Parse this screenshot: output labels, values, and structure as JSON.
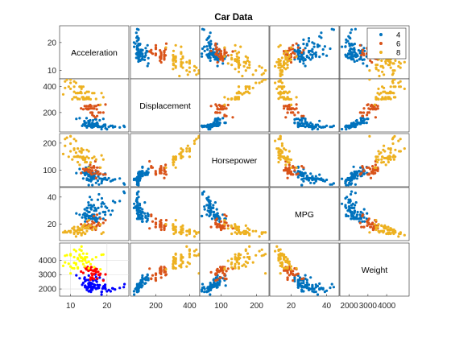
{
  "chart_data": {
    "type": "scatter",
    "title": "Car Data",
    "variables": [
      "Acceleration",
      "Displacement",
      "Horsepower",
      "MPG",
      "Weight"
    ],
    "ranges": {
      "Acceleration": [
        7,
        26
      ],
      "Displacement": [
        50,
        460
      ],
      "Horsepower": [
        40,
        235
      ],
      "MPG": [
        8,
        47
      ],
      "Weight": [
        1500,
        5200
      ]
    },
    "ticks": {
      "Acceleration": [
        10,
        20
      ],
      "Displacement": [
        200,
        400
      ],
      "Horsepower": [
        100,
        200
      ],
      "MPG": [
        20,
        40
      ],
      "Weight": [
        2000,
        3000,
        4000
      ]
    },
    "legend": {
      "position": "top-right",
      "entries": [
        {
          "label": "4",
          "color": "#0072BD"
        },
        {
          "label": "6",
          "color": "#D95319"
        },
        {
          "label": "8",
          "color": "#EDB120"
        }
      ]
    },
    "highlight_panel": {
      "row": "Weight",
      "col": "Acceleration",
      "colors": [
        "#0000FF",
        "#FF0000",
        "#FFFF00"
      ],
      "grid": true
    },
    "series": [
      {
        "name": "4",
        "color": "#0072BD",
        "points": [
          [
            19.5,
            97,
            88,
            27,
            2130
          ],
          [
            14.5,
            97,
            88,
            27,
            2130
          ],
          [
            15.5,
            97,
            88,
            26,
            2130
          ],
          [
            15,
            97,
            46,
            26,
            1835
          ],
          [
            16,
            97,
            88,
            27,
            2145
          ],
          [
            14,
            98,
            83,
            26,
            2219
          ],
          [
            15,
            104,
            95,
            25,
            2375
          ],
          [
            15,
            121,
            113,
            24,
            2234
          ],
          [
            15.5,
            107,
            90,
            24,
            2430
          ],
          [
            16,
            113,
            95,
            24,
            2372
          ],
          [
            14,
            101,
            83,
            25,
            2228
          ],
          [
            15,
            121,
            112,
            24,
            2933
          ],
          [
            14.5,
            97,
            88,
            27,
            2130
          ],
          [
            17,
            98,
            70,
            30,
            2047
          ],
          [
            16.5,
            97,
            88,
            24,
            2288
          ],
          [
            18.5,
            91,
            53,
            33,
            1795
          ],
          [
            21,
            97,
            60,
            27,
            1834
          ],
          [
            17,
            97,
            54,
            31,
            2003
          ],
          [
            19,
            97,
            67,
            29,
            2065
          ],
          [
            16.5,
            97,
            88,
            24,
            2100
          ],
          [
            18,
            90,
            70,
            28,
            2264
          ],
          [
            14,
            116,
            90,
            28,
            2123
          ],
          [
            14.5,
            85,
            65,
            32,
            2020
          ],
          [
            19,
            98,
            68,
            29,
            2155
          ],
          [
            16,
            90,
            75,
            24,
            2108
          ],
          [
            15.5,
            97,
            67,
            26,
            2145
          ],
          [
            20,
            71,
            65,
            32,
            1836
          ],
          [
            16,
            85,
            70,
            33,
            1990
          ],
          [
            17.5,
            89,
            62,
            38,
            2050
          ],
          [
            16.5,
            111,
            80,
            27,
            2155
          ],
          [
            21.5,
            98,
            63,
            30,
            2051
          ],
          [
            18.5,
            72,
            69,
            35,
            1613
          ],
          [
            16,
            97,
            46,
            26,
            1950
          ],
          [
            14.5,
            91,
            70,
            30,
            1937
          ],
          [
            19.5,
            107,
            72,
            29,
            2290
          ],
          [
            23.5,
            85,
            70,
            37,
            2070
          ],
          [
            22.2,
            91,
            67,
            36,
            1965
          ],
          [
            24.8,
            90,
            48,
            43,
            2335
          ],
          [
            21.7,
            86,
            65,
            37,
            2019
          ],
          [
            15.3,
            98,
            65,
            40,
            1875
          ],
          [
            17.6,
            97,
            78,
            32,
            2188
          ],
          [
            18.8,
            91,
            68,
            36,
            2025
          ],
          [
            13.9,
            120,
            88,
            31,
            2800
          ],
          [
            16.4,
            91,
            69,
            34,
            2130
          ],
          [
            20.5,
            89,
            71,
            30,
            1925
          ],
          [
            17.2,
            120,
            97,
            24,
            2506
          ],
          [
            15.5,
            97,
            78,
            34,
            2300
          ],
          [
            19.6,
            79,
            67,
            33,
            2000
          ],
          [
            24.6,
            97,
            52,
            44,
            2130
          ],
          [
            11.6,
            151,
            90,
            28,
            2950
          ],
          [
            16.9,
            112,
            88,
            25,
            2605
          ],
          [
            14.9,
            135,
            84,
            36,
            2370
          ],
          [
            17.3,
            122,
            96,
            22,
            2695
          ],
          [
            15,
            105,
            63,
            34,
            2125
          ],
          [
            16.7,
            108,
            75,
            32,
            2265
          ],
          [
            15.8,
            86,
            65,
            38,
            1975
          ],
          [
            18.6,
            89,
            60,
            39,
            1800
          ],
          [
            15.4,
            140,
            90,
            26,
            2408
          ],
          [
            16.2,
            140,
            83,
            25,
            2639
          ],
          [
            19,
            151,
            84,
            24,
            2635
          ],
          [
            17,
            146,
            97,
            22,
            2815
          ],
          [
            14.4,
            156,
            92,
            26,
            2620
          ],
          [
            13.8,
            134,
            90,
            28,
            2711
          ],
          [
            16,
            121,
            80,
            26,
            2670
          ],
          [
            15.5,
            98,
            76,
            32,
            2144
          ],
          [
            14,
            119,
            97,
            22,
            2545
          ],
          [
            15.2,
            122,
            80,
            29,
            2451
          ],
          [
            16.5,
            107,
            72,
            30,
            2290
          ],
          [
            17.4,
            113,
            95,
            24,
            2278
          ],
          [
            12.5,
            156,
            105,
            27,
            2745
          ],
          [
            16.8,
            151,
            88,
            23,
            3000
          ],
          [
            18,
            140,
            86,
            25,
            2790
          ],
          [
            14.7,
            98,
            68,
            32,
            2045
          ],
          [
            13.5,
            108,
            70,
            27,
            2420
          ],
          [
            15.9,
            98,
            80,
            26,
            2164
          ],
          [
            14.2,
            121,
            110,
            24,
            2600
          ],
          [
            13.2,
            97,
            92,
            25,
            2288
          ],
          [
            15.7,
            89,
            71,
            31,
            1990
          ],
          [
            14.9,
            120,
            79,
            29,
            2625
          ],
          [
            16.2,
            112,
            85,
            27,
            2575
          ],
          [
            19.2,
            105,
            70,
            35,
            2200
          ],
          [
            17.8,
            90,
            48,
            42,
            2085
          ],
          [
            15.6,
            91,
            60,
            34,
            1800
          ]
        ]
      },
      {
        "name": "6",
        "color": "#D95319",
        "points": [
          [
            16,
            199,
            97,
            18,
            2774
          ],
          [
            15.5,
            199,
            90,
            18,
            2648
          ],
          [
            19,
            200,
            85,
            21,
            2587
          ],
          [
            15.5,
            232,
            100,
            18,
            2789
          ],
          [
            13.5,
            225,
            105,
            18,
            3121
          ],
          [
            15.5,
            250,
            100,
            17,
            3329
          ],
          [
            16.5,
            250,
            88,
            18,
            3302
          ],
          [
            15,
            250,
            105,
            17,
            3282
          ],
          [
            16,
            232,
            100,
            16,
            3288
          ],
          [
            18,
            258,
            110,
            19,
            2962
          ],
          [
            17,
            250,
            72,
            18,
            3158
          ],
          [
            16.5,
            231,
            110,
            21,
            3039
          ],
          [
            14.9,
            225,
            95,
            20,
            3264
          ],
          [
            14.2,
            231,
            105,
            19,
            3425
          ],
          [
            16,
            181,
            110,
            22,
            2945
          ],
          [
            19.6,
            262,
            85,
            23,
            3015
          ],
          [
            16.4,
            231,
            115,
            21,
            3245
          ],
          [
            15.8,
            200,
            85,
            20,
            3070
          ],
          [
            17.2,
            225,
            90,
            19,
            3381
          ],
          [
            15.1,
            231,
            110,
            23,
            3380
          ],
          [
            16.4,
            173,
            115,
            26,
            2700
          ],
          [
            14.7,
            231,
            105,
            19,
            3535
          ],
          [
            17.3,
            173,
            110,
            27,
            2725
          ],
          [
            18.2,
            200,
            88,
            24,
            3060
          ],
          [
            15.4,
            258,
            120,
            19,
            3410
          ],
          [
            16.8,
            163,
            133,
            17,
            3410
          ],
          [
            13.9,
            250,
            98,
            19,
            3525
          ],
          [
            15.7,
            250,
            110,
            17,
            3520
          ],
          [
            14.4,
            250,
            105,
            19,
            3353
          ],
          [
            12.9,
            232,
            90,
            20,
            3210
          ],
          [
            17.7,
            200,
            85,
            21,
            2990
          ],
          [
            14.6,
            225,
            100,
            22,
            3430
          ],
          [
            17.6,
            258,
            95,
            20,
            3193
          ],
          [
            16.9,
            250,
            100,
            16,
            3278
          ]
        ]
      },
      {
        "name": "8",
        "color": "#EDB120",
        "points": [
          [
            12,
            307,
            130,
            18,
            3504
          ],
          [
            11.5,
            350,
            165,
            15,
            3693
          ],
          [
            11,
            318,
            150,
            18,
            3436
          ],
          [
            12,
            304,
            150,
            16,
            3433
          ],
          [
            10.5,
            302,
            140,
            17,
            3449
          ],
          [
            10,
            429,
            198,
            15,
            4341
          ],
          [
            9,
            454,
            220,
            14,
            4354
          ],
          [
            8.5,
            440,
            215,
            14,
            4312
          ],
          [
            10,
            455,
            225,
            14,
            4425
          ],
          [
            8.5,
            390,
            190,
            15,
            3850
          ],
          [
            10,
            383,
            170,
            15,
            3563
          ],
          [
            8,
            340,
            160,
            14,
            3609
          ],
          [
            9.5,
            400,
            150,
            15,
            3761
          ],
          [
            10,
            455,
            225,
            14,
            3086
          ],
          [
            13,
            350,
            165,
            13,
            4209
          ],
          [
            12,
            351,
            153,
            14,
            4154
          ],
          [
            13.5,
            400,
            175,
            14,
            4464
          ],
          [
            13,
            383,
            180,
            12,
            4955
          ],
          [
            14,
            350,
            145,
            13,
            3988
          ],
          [
            12.5,
            400,
            170,
            14,
            4746
          ],
          [
            11,
            440,
            215,
            13,
            4735
          ],
          [
            11,
            360,
            175,
            14,
            3821
          ],
          [
            14,
            307,
            130,
            13,
            4098
          ],
          [
            13.5,
            318,
            150,
            14,
            4077
          ],
          [
            15,
            305,
            145,
            17,
            3880
          ],
          [
            11,
            400,
            180,
            16,
            4220
          ],
          [
            12.5,
            351,
            149,
            16,
            4335
          ],
          [
            13.5,
            318,
            140,
            18,
            4080
          ],
          [
            15.5,
            302,
            129,
            19,
            3725
          ],
          [
            14.5,
            318,
            150,
            15,
            4457
          ],
          [
            13.2,
            318,
            145,
            18,
            3940
          ],
          [
            16,
            350,
            145,
            16,
            4055
          ],
          [
            17,
            305,
            140,
            17,
            4215
          ],
          [
            12.8,
            360,
            150,
            16,
            4190
          ],
          [
            11.5,
            429,
            208,
            11,
            4633
          ],
          [
            12.5,
            400,
            150,
            16,
            4385
          ],
          [
            12,
            350,
            180,
            13,
            4100
          ],
          [
            11.5,
            318,
            150,
            15,
            3777
          ],
          [
            13,
            400,
            170,
            13,
            4668
          ],
          [
            14.5,
            360,
            175,
            17,
            4215
          ],
          [
            16.5,
            350,
            150,
            18,
            3520
          ],
          [
            15,
            318,
            110,
            23,
            3432
          ],
          [
            18.2,
            260,
            110,
            20,
            3365
          ],
          [
            14.4,
            305,
            130,
            18,
            3840
          ],
          [
            12.5,
            304,
            120,
            17,
            3962
          ],
          [
            13.2,
            318,
            145,
            16,
            4140
          ],
          [
            18.5,
            350,
            155,
            13,
            4380
          ],
          [
            19,
            318,
            140,
            14,
            4399
          ],
          [
            13.9,
            302,
            139,
            20,
            3570
          ],
          [
            15,
            360,
            170,
            19,
            3900
          ],
          [
            14,
            305,
            140,
            17,
            4215
          ],
          [
            13.5,
            302,
            140,
            19,
            3730
          ]
        ]
      }
    ]
  }
}
